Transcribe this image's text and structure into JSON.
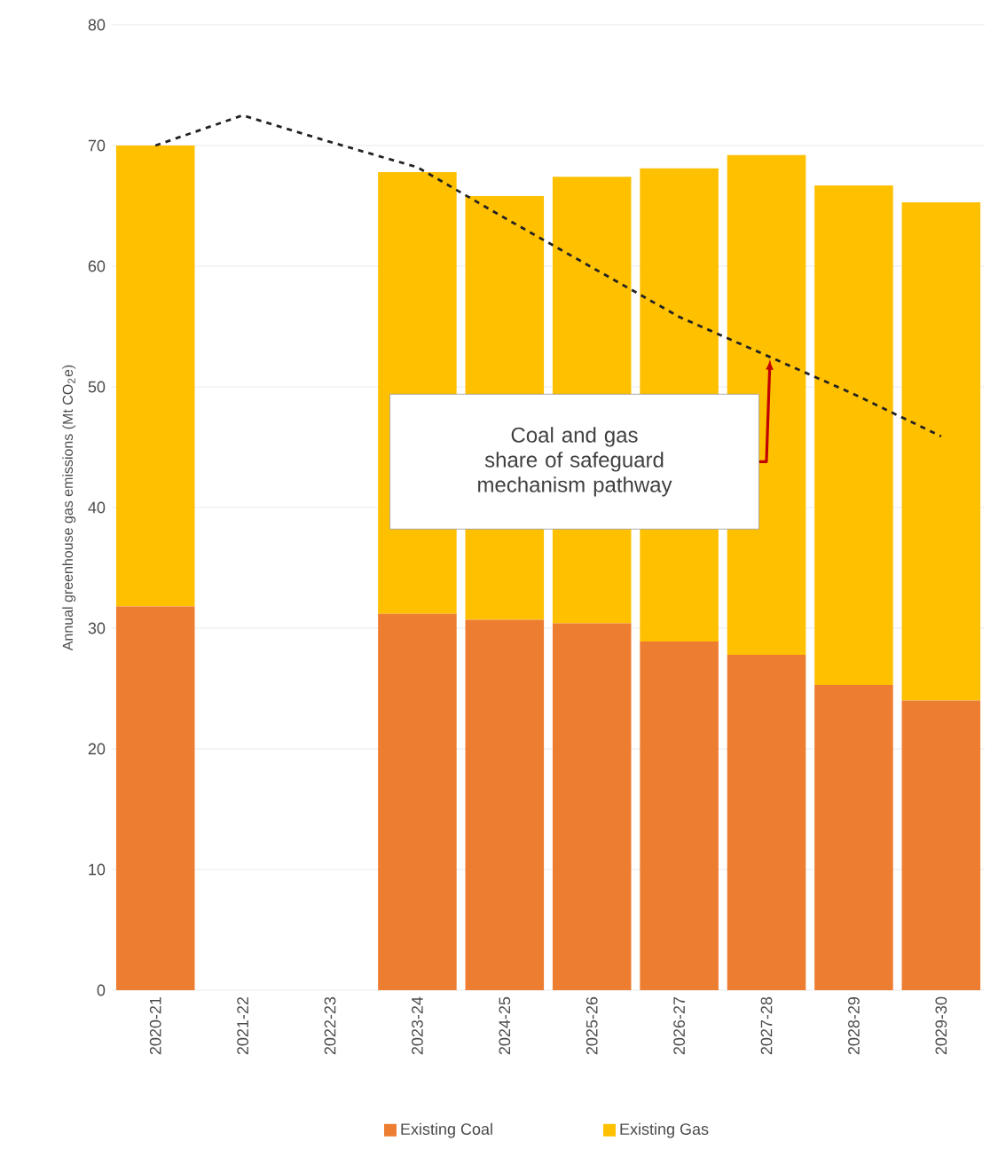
{
  "chart_data": {
    "type": "bar",
    "stacked": true,
    "ylabel": "Annual greenhouse gas emissions (Mt CO$_{2}$e)",
    "categories": [
      "2020-21",
      "2021-22",
      "2022-23",
      "2023-24",
      "2024-25",
      "2025-26",
      "2026-27",
      "2027-28",
      "2028-29",
      "2029-30"
    ],
    "series": [
      {
        "name": "Existing Coal",
        "color": "#ed7d31",
        "values": [
          31.8,
          null,
          null,
          31.2,
          30.7,
          30.4,
          28.9,
          27.8,
          25.3,
          24.0
        ]
      },
      {
        "name": "Existing Gas",
        "color": "#ffc000",
        "values": [
          38.2,
          null,
          null,
          36.6,
          35.1,
          37.0,
          39.2,
          41.4,
          41.4,
          41.3
        ]
      },
      {
        "type": "line",
        "color": "#222222",
        "line_style": "dashed",
        "marker": "none",
        "values": [
          70.0,
          72.5,
          70.3,
          68.2,
          64.0,
          59.9,
          55.8,
          52.6,
          49.4,
          45.9
        ]
      }
    ],
    "ylim": [
      0,
      80
    ],
    "yticks": [
      0,
      10,
      20,
      30,
      40,
      50,
      60,
      70,
      80
    ],
    "grid": "y",
    "legend": "bottom",
    "annotations": [
      "Coal and gas share of safeguard mechanism pathway"
    ]
  }
}
